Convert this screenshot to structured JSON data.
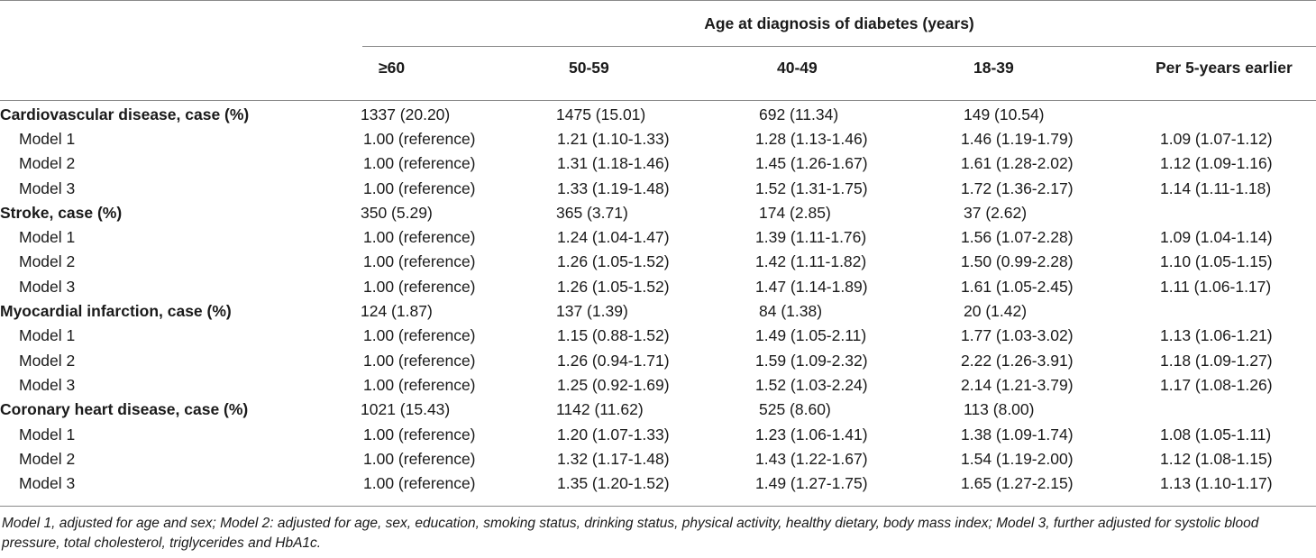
{
  "header": {
    "group_title": "Age at diagnosis of diabetes (years)",
    "columns": [
      "≥60",
      "50-59",
      "40-49",
      "18-39",
      "Per 5-years earlier"
    ]
  },
  "rows": [
    {
      "kind": "cat",
      "label": "Cardiovascular disease, case (%)",
      "v": [
        "1337 (20.20)",
        "1475 (15.01)",
        "692 (11.34)",
        "149 (10.54)",
        ""
      ]
    },
    {
      "kind": "sub",
      "label": "Model 1",
      "v": [
        "1.00 (reference)",
        "1.21 (1.10-1.33)",
        "1.28 (1.13-1.46)",
        "1.46 (1.19-1.79)",
        "1.09 (1.07-1.12)"
      ]
    },
    {
      "kind": "sub",
      "label": "Model 2",
      "v": [
        "1.00 (reference)",
        "1.31 (1.18-1.46)",
        "1.45 (1.26-1.67)",
        "1.61 (1.28-2.02)",
        "1.12 (1.09-1.16)"
      ]
    },
    {
      "kind": "sub",
      "label": "Model 3",
      "v": [
        "1.00 (reference)",
        "1.33 (1.19-1.48)",
        "1.52 (1.31-1.75)",
        "1.72 (1.36-2.17)",
        "1.14 (1.11-1.18)"
      ]
    },
    {
      "kind": "cat",
      "label": "Stroke, case (%)",
      "v": [
        "350 (5.29)",
        "365 (3.71)",
        "174 (2.85)",
        "37 (2.62)",
        ""
      ]
    },
    {
      "kind": "sub",
      "label": "Model 1",
      "v": [
        "1.00 (reference)",
        "1.24 (1.04-1.47)",
        "1.39 (1.11-1.76)",
        "1.56 (1.07-2.28)",
        "1.09 (1.04-1.14)"
      ]
    },
    {
      "kind": "sub",
      "label": "Model 2",
      "v": [
        "1.00 (reference)",
        "1.26 (1.05-1.52)",
        "1.42 (1.11-1.82)",
        "1.50 (0.99-2.28)",
        "1.10 (1.05-1.15)"
      ]
    },
    {
      "kind": "sub",
      "label": "Model 3",
      "v": [
        "1.00 (reference)",
        "1.26 (1.05-1.52)",
        "1.47 (1.14-1.89)",
        "1.61 (1.05-2.45)",
        "1.11 (1.06-1.17)"
      ]
    },
    {
      "kind": "cat",
      "label": "Myocardial infarction, case (%)",
      "v": [
        "124 (1.87)",
        "137 (1.39)",
        "84 (1.38)",
        "20 (1.42)",
        ""
      ]
    },
    {
      "kind": "sub",
      "label": "Model 1",
      "v": [
        "1.00 (reference)",
        "1.15 (0.88-1.52)",
        "1.49 (1.05-2.11)",
        "1.77 (1.03-3.02)",
        "1.13 (1.06-1.21)"
      ]
    },
    {
      "kind": "sub",
      "label": "Model 2",
      "v": [
        "1.00 (reference)",
        "1.26 (0.94-1.71)",
        "1.59 (1.09-2.32)",
        "2.22 (1.26-3.91)",
        "1.18 (1.09-1.27)"
      ]
    },
    {
      "kind": "sub",
      "label": "Model 3",
      "v": [
        "1.00 (reference)",
        "1.25 (0.92-1.69)",
        "1.52 (1.03-2.24)",
        "2.14 (1.21-3.79)",
        "1.17 (1.08-1.26)"
      ]
    },
    {
      "kind": "cat",
      "label": "Coronary heart disease, case (%)",
      "v": [
        "1021 (15.43)",
        "1142 (11.62)",
        "525 (8.60)",
        "113 (8.00)",
        ""
      ]
    },
    {
      "kind": "sub",
      "label": "Model 1",
      "v": [
        "1.00 (reference)",
        "1.20 (1.07-1.33)",
        "1.23 (1.06-1.41)",
        "1.38 (1.09-1.74)",
        "1.08 (1.05-1.11)"
      ]
    },
    {
      "kind": "sub",
      "label": "Model 2",
      "v": [
        "1.00 (reference)",
        "1.32 (1.17-1.48)",
        "1.43 (1.22-1.67)",
        "1.54 (1.19-2.00)",
        "1.12 (1.08-1.15)"
      ]
    },
    {
      "kind": "sub",
      "label": "Model 3",
      "v": [
        "1.00 (reference)",
        "1.35 (1.20-1.52)",
        "1.49 (1.27-1.75)",
        "1.65 (1.27-2.15)",
        "1.13 (1.10-1.17)"
      ]
    }
  ],
  "footnote": "Model 1, adjusted for age and sex; Model 2: adjusted for age, sex, education, smoking status, drinking status, physical activity, healthy dietary, body mass index; Model 3, further adjusted for systolic blood pressure, total cholesterol, triglycerides and HbA1c."
}
